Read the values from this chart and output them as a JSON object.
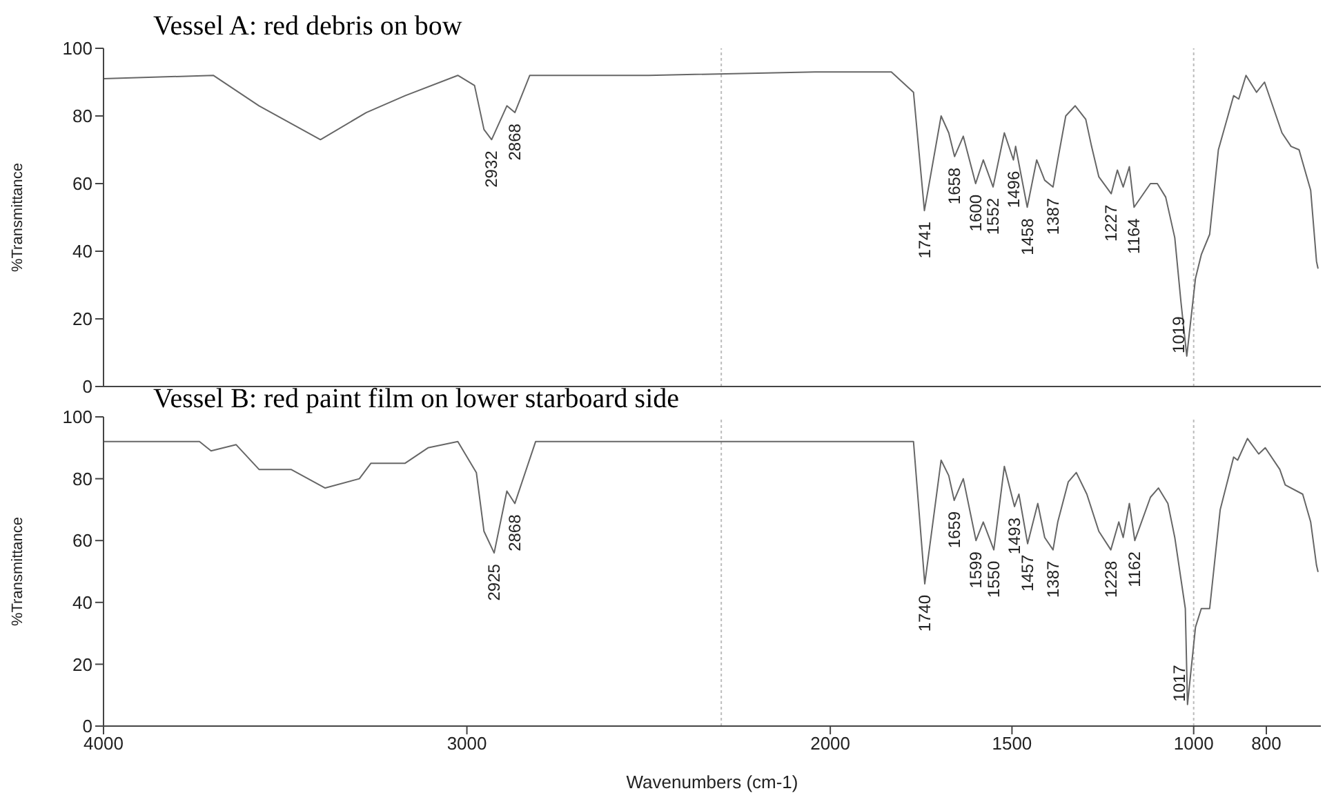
{
  "chart_data": [
    {
      "type": "line",
      "title": "Vessel A: red debris on bow",
      "ylabel": "%Transmittance",
      "xlim": [
        4000,
        650
      ],
      "xticks": [
        4000,
        3000,
        2000,
        1500,
        1000,
        800
      ],
      "ylim": [
        0,
        100
      ],
      "yticks": [
        0,
        20,
        40,
        60,
        80,
        100
      ],
      "tick_labels": "y",
      "series": [
        {
          "color": "#666666",
          "x": [
            4000,
            3698,
            3572,
            3403,
            3277,
            3170,
            3025,
            2979,
            2953,
            2932,
            2890,
            2868,
            2827,
            2500,
            2042,
            1832,
            1771,
            1741,
            1695,
            1674,
            1658,
            1634,
            1600,
            1579,
            1552,
            1521,
            1496,
            1490,
            1458,
            1432,
            1410,
            1387,
            1374,
            1352,
            1326,
            1297,
            1281,
            1261,
            1227,
            1210,
            1194,
            1177,
            1164,
            1119,
            1100,
            1077,
            1052,
            1035,
            1019,
            995,
            979,
            956,
            932,
            890,
            876,
            856,
            827,
            805,
            757,
            732,
            710,
            678,
            662,
            658
          ],
          "values": [
            91,
            92,
            83,
            73,
            81,
            86,
            92,
            89,
            76,
            73,
            83,
            81,
            92,
            92,
            93,
            93,
            87,
            52,
            80,
            75,
            68,
            74,
            60,
            67,
            59,
            75,
            67,
            71,
            53,
            67,
            61,
            59,
            67,
            80,
            83,
            79,
            71,
            62,
            57,
            64,
            59,
            65,
            53,
            60,
            60,
            56,
            44,
            25,
            9,
            32,
            39,
            45,
            70,
            86,
            85,
            92,
            87,
            90,
            75,
            71,
            70,
            58,
            37,
            35
          ]
        }
      ],
      "annotations": [
        {
          "text": "2932",
          "x": 2932,
          "y": 73
        },
        {
          "text": "2868",
          "x": 2868,
          "y": 81
        },
        {
          "text": "1741",
          "x": 1741,
          "y": 52
        },
        {
          "text": "1658",
          "x": 1658,
          "y": 68
        },
        {
          "text": "1600",
          "x": 1600,
          "y": 60
        },
        {
          "text": "1552",
          "x": 1552,
          "y": 59
        },
        {
          "text": "1496",
          "x": 1496,
          "y": 67
        },
        {
          "text": "1458",
          "x": 1458,
          "y": 53
        },
        {
          "text": "1387",
          "x": 1387,
          "y": 59
        },
        {
          "text": "1227",
          "x": 1227,
          "y": 57
        },
        {
          "text": "1164",
          "x": 1164,
          "y": 53
        },
        {
          "text": "1019",
          "x": 1019,
          "y": 9
        }
      ],
      "ref_lines": [
        {
          "axis": "x",
          "value": 2300,
          "color": "#bbbbbb",
          "line_style": "dotted"
        },
        {
          "axis": "x",
          "value": 1000,
          "color": "#bbbbbb",
          "line_style": "dotted"
        }
      ]
    },
    {
      "type": "line",
      "title": "Vessel B: red paint film on lower starboard side",
      "xlabel": "Wavenumbers (cm-1)",
      "ylabel": "%Transmittance",
      "xlim": [
        4000,
        650
      ],
      "xticks": [
        4000,
        3000,
        2000,
        1500,
        1000,
        800
      ],
      "ylim": [
        0,
        100
      ],
      "yticks": [
        0,
        20,
        40,
        60,
        80,
        100
      ],
      "series": [
        {
          "color": "#666666",
          "x": [
            4000,
            3736,
            3704,
            3635,
            3572,
            3484,
            3390,
            3296,
            3264,
            3170,
            3107,
            3025,
            2974,
            2953,
            2925,
            2890,
            2868,
            2811,
            2500,
            2042,
            1832,
            1771,
            1740,
            1695,
            1674,
            1659,
            1634,
            1599,
            1579,
            1550,
            1521,
            1493,
            1481,
            1457,
            1429,
            1410,
            1387,
            1374,
            1345,
            1323,
            1294,
            1261,
            1228,
            1206,
            1194,
            1177,
            1162,
            1119,
            1097,
            1071,
            1052,
            1023,
            1017,
            995,
            979,
            956,
            927,
            890,
            879,
            852,
            821,
            803,
            763,
            748,
            700,
            678,
            662,
            658
          ],
          "values": [
            92,
            92,
            89,
            91,
            83,
            83,
            77,
            80,
            85,
            85,
            90,
            92,
            82,
            63,
            56,
            76,
            72,
            92,
            92,
            92,
            92,
            92,
            46,
            86,
            81,
            73,
            80,
            60,
            66,
            57,
            84,
            71,
            75,
            59,
            72,
            61,
            57,
            66,
            79,
            82,
            75,
            63,
            57,
            66,
            61,
            72,
            60,
            74,
            77,
            72,
            61,
            38,
            7,
            32,
            38,
            38,
            70,
            87,
            86,
            93,
            88,
            90,
            83,
            78,
            75,
            66,
            52,
            50
          ]
        }
      ],
      "annotations": [
        {
          "text": "2925",
          "x": 2925,
          "y": 56
        },
        {
          "text": "2868",
          "x": 2868,
          "y": 72
        },
        {
          "text": "1740",
          "x": 1740,
          "y": 46
        },
        {
          "text": "1659",
          "x": 1659,
          "y": 73
        },
        {
          "text": "1599",
          "x": 1599,
          "y": 60
        },
        {
          "text": "1550",
          "x": 1550,
          "y": 57
        },
        {
          "text": "1493",
          "x": 1493,
          "y": 71
        },
        {
          "text": "1457",
          "x": 1457,
          "y": 59
        },
        {
          "text": "1387",
          "x": 1387,
          "y": 57
        },
        {
          "text": "1228",
          "x": 1228,
          "y": 57
        },
        {
          "text": "1162",
          "x": 1162,
          "y": 60
        },
        {
          "text": "1017",
          "x": 1017,
          "y": 7
        }
      ],
      "ref_lines": [
        {
          "axis": "x",
          "value": 2300,
          "color": "#bbbbbb",
          "line_style": "dotted"
        },
        {
          "axis": "x",
          "value": 1000,
          "color": "#bbbbbb",
          "line_style": "dotted"
        }
      ]
    }
  ]
}
